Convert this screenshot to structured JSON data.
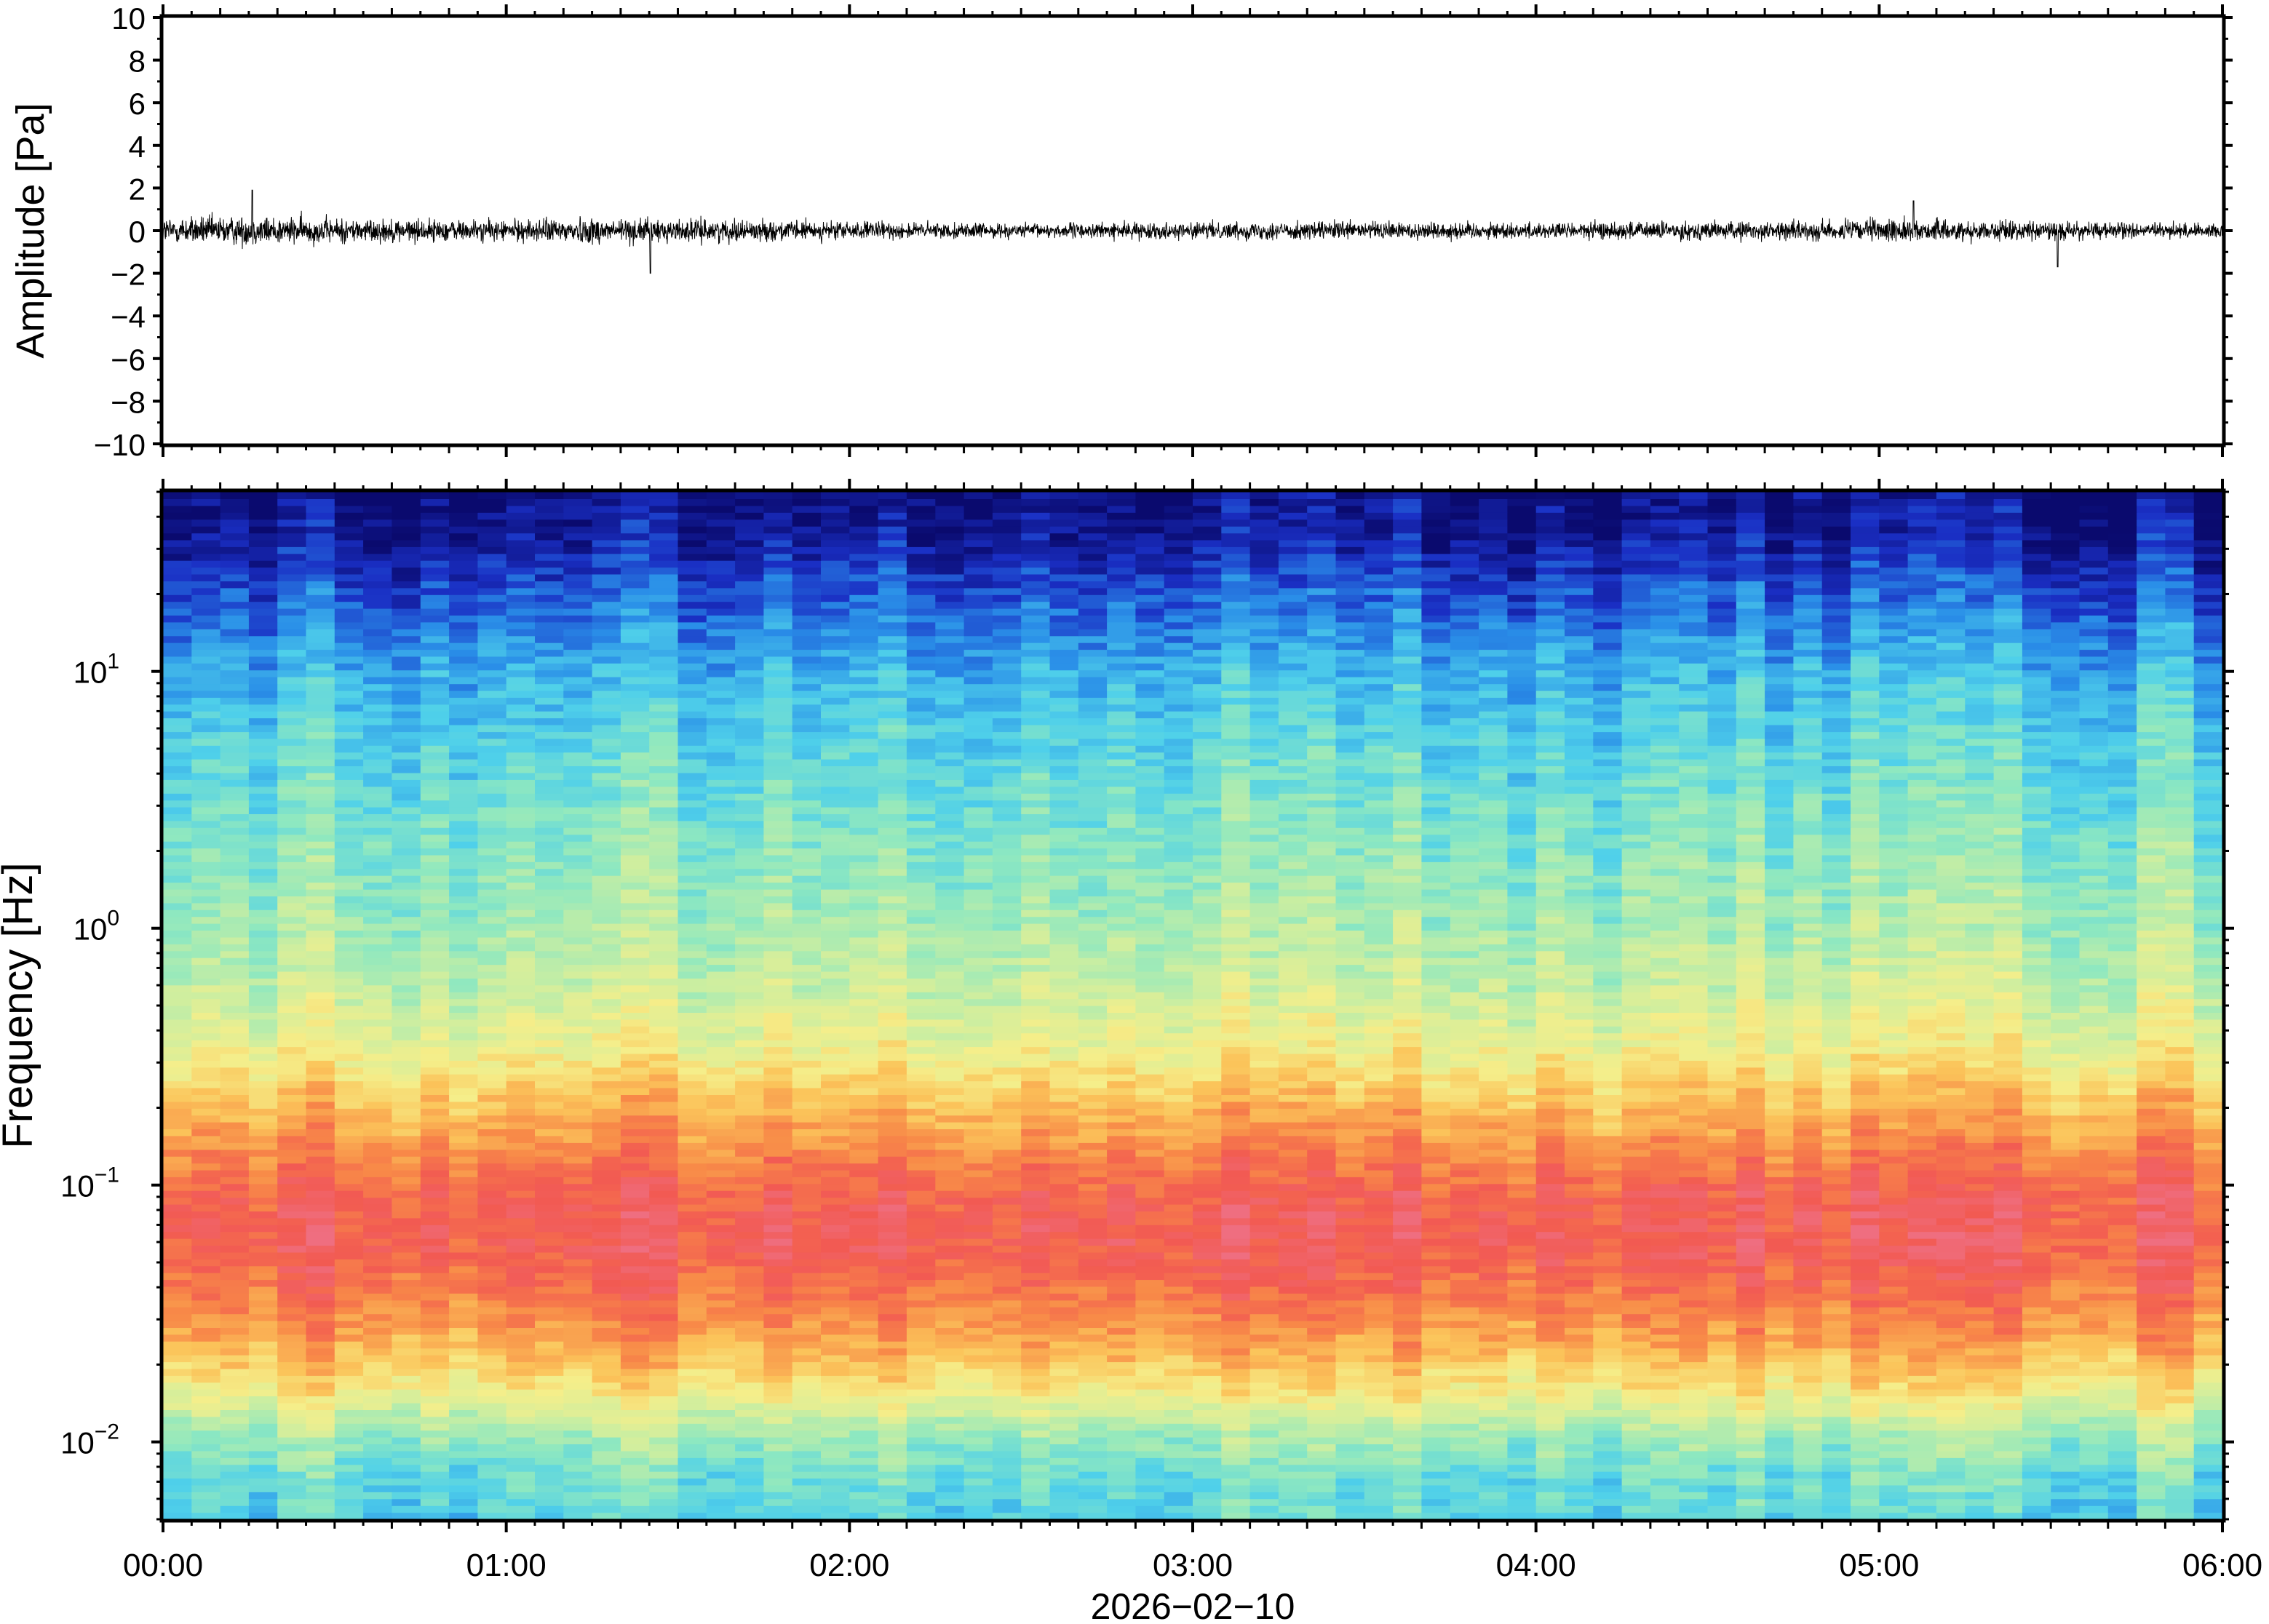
{
  "chart_data": [
    {
      "type": "line",
      "panel": "waveform",
      "ylabel": "Amplitude [Pa]",
      "ylim": [
        -10,
        10
      ],
      "yticks": [
        10,
        8,
        6,
        4,
        2,
        0,
        -2,
        -4,
        -6,
        -8,
        -10
      ],
      "ytick_labels": [
        "10",
        "8",
        "6",
        "4",
        "2",
        "0",
        "−2",
        "−4",
        "−6",
        "−8",
        "−10"
      ],
      "x_range_hours": [
        0,
        6
      ],
      "series": [
        {
          "color": "#000000",
          "x_hours": [
            0.0,
            0.25,
            0.5,
            0.75,
            1.0,
            1.25,
            1.5,
            1.75,
            2.0,
            2.25,
            2.5,
            2.75,
            3.0,
            3.25,
            3.5,
            3.75,
            4.0,
            4.25,
            4.5,
            4.75,
            5.0,
            5.25,
            5.5,
            5.75,
            6.0
          ],
          "envelope_pa": [
            1.2,
            1.3,
            1.1,
            1.0,
            0.9,
            1.2,
            1.0,
            0.9,
            0.8,
            0.7,
            0.6,
            0.7,
            0.7,
            0.8,
            0.8,
            0.8,
            0.7,
            0.8,
            0.8,
            0.8,
            1.0,
            0.9,
            0.8,
            0.7,
            0.6
          ],
          "peaks": [
            {
              "x_hours": 0.26,
              "amplitude_pa": 1.9
            },
            {
              "x_hours": 1.42,
              "amplitude_pa": -2.0
            },
            {
              "x_hours": 5.1,
              "amplitude_pa": 1.4
            },
            {
              "x_hours": 5.52,
              "amplitude_pa": -1.7
            }
          ]
        }
      ]
    },
    {
      "type": "heatmap",
      "panel": "spectrogram",
      "ylabel": "Frequency [Hz]",
      "yscale": "log",
      "ylim_hz": [
        0.005,
        50
      ],
      "yticks": [
        {
          "base": "10",
          "exp": "1",
          "value": 10
        },
        {
          "base": "10",
          "exp": "0",
          "value": 1
        },
        {
          "base": "10",
          "exp": "−1",
          "value": 0.1
        },
        {
          "base": "10",
          "exp": "−2",
          "value": 0.01
        }
      ],
      "colormap": [
        "#0a0a6e",
        "#1a2fc4",
        "#2a8fe8",
        "#4fd0ea",
        "#8ee8c0",
        "#cdeea0",
        "#f5ee8a",
        "#fbc45a",
        "#f88a48",
        "#f25a52",
        "#ef6e80"
      ],
      "mean_level_by_frequency": [
        {
          "freq_hz": 0.005,
          "level": 0.32
        },
        {
          "freq_hz": 0.0075,
          "level": 0.36
        },
        {
          "freq_hz": 0.011,
          "level": 0.45
        },
        {
          "freq_hz": 0.016,
          "level": 0.62
        },
        {
          "freq_hz": 0.025,
          "level": 0.76
        },
        {
          "freq_hz": 0.04,
          "level": 0.86
        },
        {
          "freq_hz": 0.06,
          "level": 0.92
        },
        {
          "freq_hz": 0.09,
          "level": 0.9
        },
        {
          "freq_hz": 0.13,
          "level": 0.82
        },
        {
          "freq_hz": 0.2,
          "level": 0.72
        },
        {
          "freq_hz": 0.35,
          "level": 0.58
        },
        {
          "freq_hz": 0.6,
          "level": 0.5
        },
        {
          "freq_hz": 1.0,
          "level": 0.45
        },
        {
          "freq_hz": 2.0,
          "level": 0.4
        },
        {
          "freq_hz": 5.0,
          "level": 0.33
        },
        {
          "freq_hz": 10.0,
          "level": 0.26
        },
        {
          "freq_hz": 20.0,
          "level": 0.15
        },
        {
          "freq_hz": 35.0,
          "level": 0.05
        },
        {
          "freq_hz": 50.0,
          "level": 0.02
        }
      ]
    }
  ],
  "x_axis": {
    "date_label": "2026−02−10",
    "range_hours": [
      0,
      6
    ],
    "ticks": [
      {
        "hour": 0,
        "label": "00:00"
      },
      {
        "hour": 1,
        "label": "01:00"
      },
      {
        "hour": 2,
        "label": "02:00"
      },
      {
        "hour": 3,
        "label": "03:00"
      },
      {
        "hour": 4,
        "label": "04:00"
      },
      {
        "hour": 5,
        "label": "05:00"
      },
      {
        "hour": 6,
        "label": "06:00"
      }
    ]
  }
}
